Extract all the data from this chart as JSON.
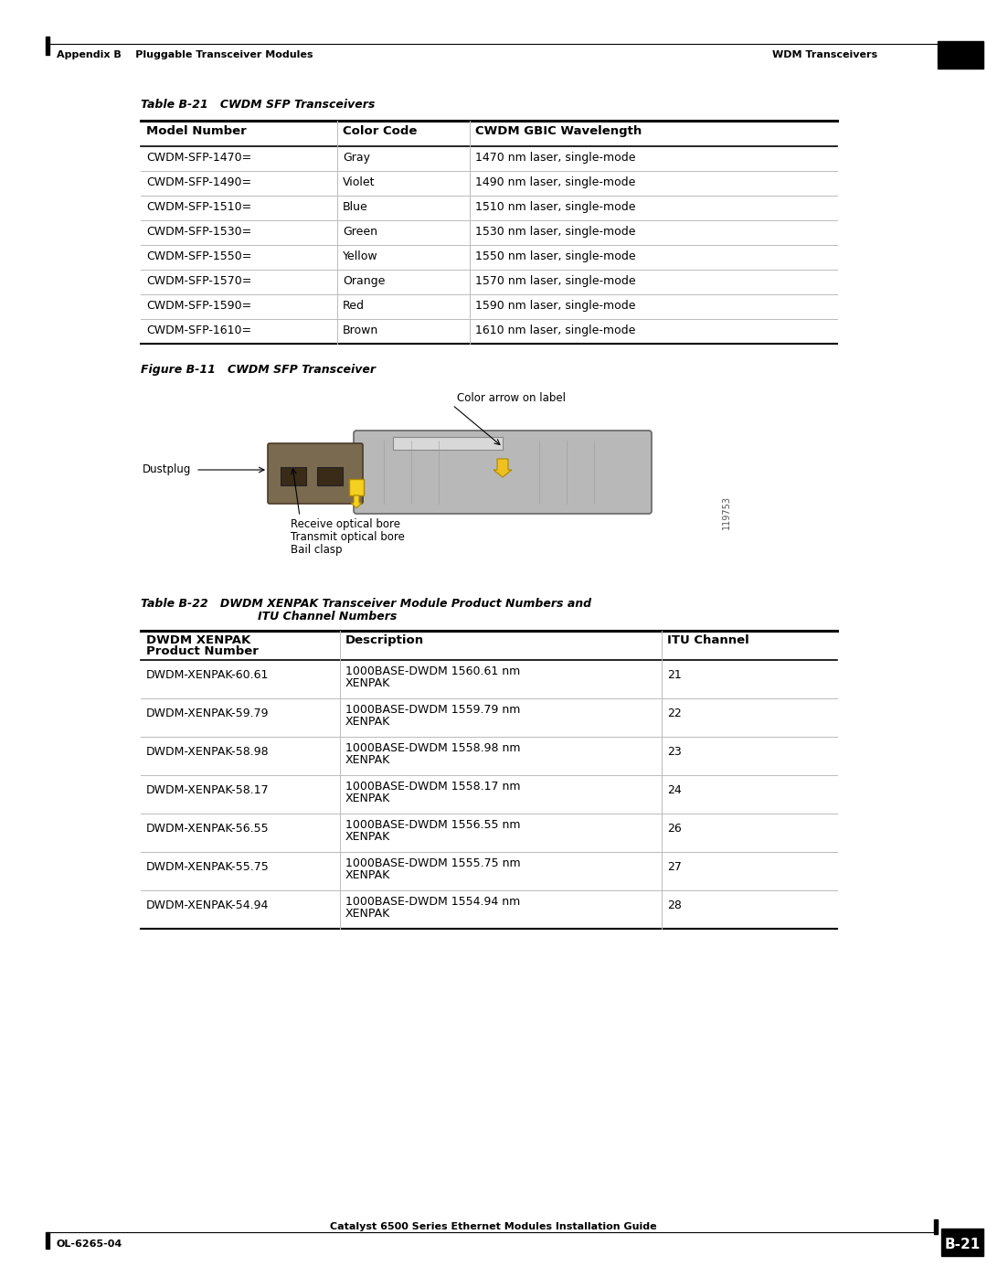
{
  "page_bg": "#ffffff",
  "header_left": "Appendix B    Pluggable Transceiver Modules",
  "header_right": "WDM Transceivers",
  "footer_left": "OL-6265-04",
  "footer_center": "Catalyst 6500 Series Ethernet Modules Installation Guide",
  "footer_page": "B-21",
  "table1_title": "Table B-21   CWDM SFP Transceivers",
  "table1_headers": [
    "Model Number",
    "Color Code",
    "CWDM GBIC Wavelength"
  ],
  "table1_rows": [
    [
      "CWDM-SFP-1470=",
      "Gray",
      "1470 nm laser, single-mode"
    ],
    [
      "CWDM-SFP-1490=",
      "Violet",
      "1490 nm laser, single-mode"
    ],
    [
      "CWDM-SFP-1510=",
      "Blue",
      "1510 nm laser, single-mode"
    ],
    [
      "CWDM-SFP-1530=",
      "Green",
      "1530 nm laser, single-mode"
    ],
    [
      "CWDM-SFP-1550=",
      "Yellow",
      "1550 nm laser, single-mode"
    ],
    [
      "CWDM-SFP-1570=",
      "Orange",
      "1570 nm laser, single-mode"
    ],
    [
      "CWDM-SFP-1590=",
      "Red",
      "1590 nm laser, single-mode"
    ],
    [
      "CWDM-SFP-1610=",
      "Brown",
      "1610 nm laser, single-mode"
    ]
  ],
  "figure_title": "Figure B-11   CWDM SFP Transceiver",
  "figure_labels": {
    "color_arrow": "Color arrow on label",
    "dustplug": "Dustplug",
    "receive_bore": "Receive optical bore",
    "transmit_bore": "Transmit optical bore",
    "bail_clasp": "Bail clasp",
    "figure_num": "119753"
  },
  "table2_title_line1": "Table B-22   DWDM XENPAK Transceiver Module Product Numbers and",
  "table2_title_line2": "ITU Channel Numbers",
  "table2_headers_line1": "DWDM XENPAK",
  "table2_headers_line2": "Product Number",
  "table2_header2": "Description",
  "table2_header3": "ITU Channel",
  "table2_rows": [
    [
      "DWDM-XENPAK-60.61",
      "1000BASE-DWDM 1560.61 nm",
      "XENPAK",
      "21"
    ],
    [
      "DWDM-XENPAK-59.79",
      "1000BASE-DWDM 1559.79 nm",
      "XENPAK",
      "22"
    ],
    [
      "DWDM-XENPAK-58.98",
      "1000BASE-DWDM 1558.98 nm",
      "XENPAK",
      "23"
    ],
    [
      "DWDM-XENPAK-58.17",
      "1000BASE-DWDM 1558.17 nm",
      "XENPAK",
      "24"
    ],
    [
      "DWDM-XENPAK-56.55",
      "1000BASE-DWDM 1556.55 nm",
      "XENPAK",
      "26"
    ],
    [
      "DWDM-XENPAK-55.75",
      "1000BASE-DWDM 1555.75 nm",
      "XENPAK",
      "27"
    ],
    [
      "DWDM-XENPAK-54.94",
      "1000BASE-DWDM 1554.94 nm",
      "XENPAK",
      "28"
    ]
  ]
}
